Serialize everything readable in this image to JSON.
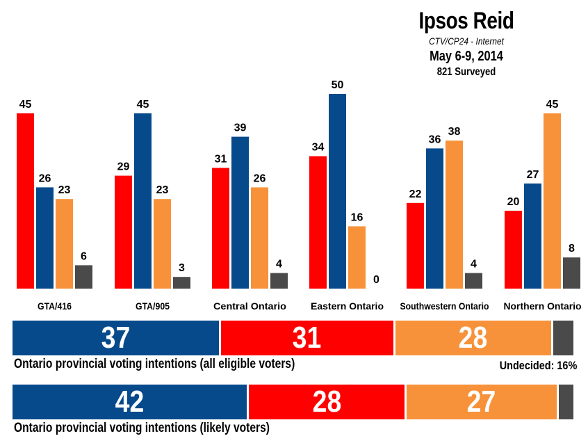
{
  "header": {
    "title": "Ipsos Reid",
    "subtitle": "CTV/CP24 - Internet",
    "dates": "May 6-9, 2014",
    "sample": "821 Surveyed"
  },
  "colors": {
    "red": "#ff0000",
    "blue": "#064a8c",
    "orange": "#f7923a",
    "gray": "#4a4a4a"
  },
  "chart_data": [
    {
      "type": "bar",
      "categories": [
        "GTA/416",
        "GTA/905",
        "Central Ontario",
        "Eastern Ontario",
        "Southwestern Ontario",
        "Northern Ontario"
      ],
      "series": [
        {
          "color": "red",
          "values": [
            45,
            29,
            31,
            34,
            22,
            20
          ]
        },
        {
          "color": "blue",
          "values": [
            26,
            45,
            39,
            50,
            36,
            27
          ]
        },
        {
          "color": "orange",
          "values": [
            23,
            23,
            26,
            16,
            38,
            45
          ]
        },
        {
          "color": "gray",
          "values": [
            6,
            3,
            4,
            0,
            4,
            8
          ]
        }
      ],
      "ylim": [
        0,
        50
      ],
      "grid": false,
      "data_labels": true
    },
    {
      "type": "bar",
      "orientation": "stacked-horizontal",
      "caption": "Ontario provincial voting intentions (all eligible voters)",
      "note": "Undecided: 16%",
      "segments": [
        {
          "color": "blue",
          "value": 37,
          "label": "37"
        },
        {
          "color": "red",
          "value": 31,
          "label": "31"
        },
        {
          "color": "orange",
          "value": 28,
          "label": "28"
        },
        {
          "color": "gray",
          "value": 4,
          "label": ""
        }
      ]
    },
    {
      "type": "bar",
      "orientation": "stacked-horizontal",
      "caption": "Ontario provincial voting intentions (likely voters)",
      "segments": [
        {
          "color": "blue",
          "value": 42,
          "label": "42"
        },
        {
          "color": "red",
          "value": 28,
          "label": "28"
        },
        {
          "color": "orange",
          "value": 27,
          "label": "27"
        },
        {
          "color": "gray",
          "value": 3,
          "label": ""
        }
      ]
    }
  ]
}
